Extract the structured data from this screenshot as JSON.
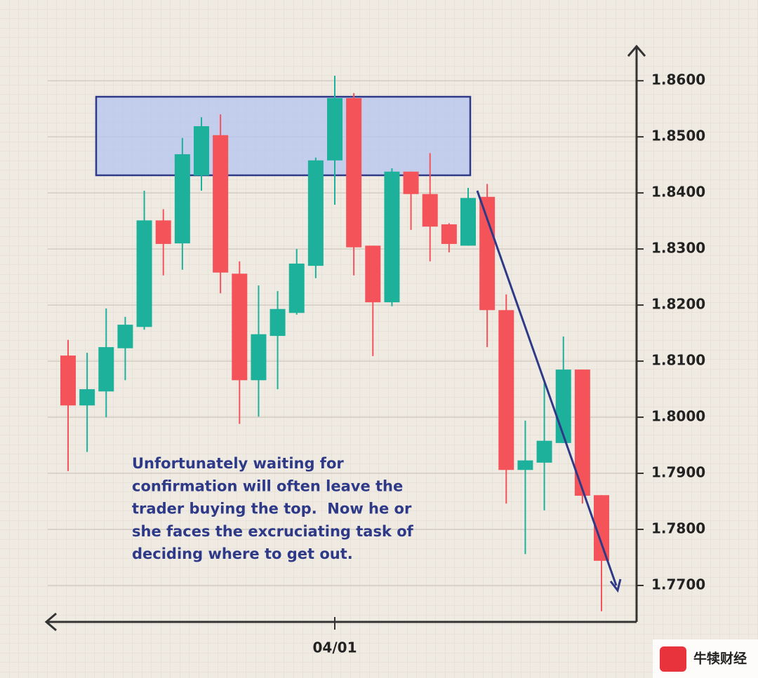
{
  "chart_data": {
    "type": "candlestick",
    "categories": [
      null,
      null,
      null,
      null,
      null,
      null,
      null,
      null,
      null,
      null,
      null,
      null,
      null,
      null,
      "04/01",
      null,
      null,
      null,
      null,
      null,
      null,
      null,
      null,
      null,
      null,
      null,
      null,
      null,
      null
    ],
    "open": [
      1.811,
      1.8021,
      1.8046,
      1.8123,
      1.8161,
      1.8351,
      1.831,
      1.8431,
      1.8503,
      1.8256,
      1.8066,
      1.8145,
      1.8186,
      1.827,
      1.8458,
      1.8569,
      1.8306,
      1.8205,
      1.8438,
      1.8398,
      1.8344,
      1.8306,
      1.8393,
      1.8191,
      1.7906,
      1.7919,
      1.7954,
      1.8085,
      1.7861
    ],
    "high": [
      1.8138,
      1.8115,
      1.8194,
      1.8179,
      1.8404,
      1.8371,
      1.8498,
      1.8535,
      1.854,
      1.8278,
      1.8235,
      1.8225,
      1.83,
      1.8463,
      1.8609,
      1.8578,
      1.8306,
      1.8444,
      1.8438,
      1.8471,
      1.8346,
      1.8409,
      1.8416,
      1.8219,
      1.7994,
      1.8063,
      1.8144,
      1.8085,
      1.7861
    ],
    "low": [
      1.7904,
      1.7938,
      1.8,
      1.8066,
      1.8156,
      1.8253,
      1.8263,
      1.8404,
      1.8221,
      1.7988,
      1.8001,
      1.805,
      1.8183,
      1.8248,
      1.8379,
      1.8253,
      1.8109,
      1.8198,
      1.8334,
      1.8278,
      1.8294,
      1.8306,
      1.8125,
      1.7846,
      1.7756,
      1.7834,
      1.7954,
      1.7846,
      1.7654
    ],
    "close": [
      1.8021,
      1.805,
      1.8125,
      1.8165,
      1.8351,
      1.8309,
      1.8469,
      1.8519,
      1.8258,
      1.8066,
      1.8148,
      1.8193,
      1.8274,
      1.8458,
      1.8569,
      1.8303,
      1.8205,
      1.8438,
      1.8398,
      1.834,
      1.8309,
      1.8391,
      1.8191,
      1.7906,
      1.7923,
      1.7958,
      1.8085,
      1.786,
      1.7744
    ],
    "up_color": "#1db09b",
    "down_color": "#f4535a",
    "ylim": [
      1.7635,
      1.8659
    ],
    "yticks": [
      {
        "value": 1.86,
        "label": "1.8600"
      },
      {
        "value": 1.85,
        "label": "1.8500"
      },
      {
        "value": 1.84,
        "label": "1.8400"
      },
      {
        "value": 1.83,
        "label": "1.8300"
      },
      {
        "value": 1.82,
        "label": "1.8200"
      },
      {
        "value": 1.81,
        "label": "1.8100"
      },
      {
        "value": 1.8,
        "label": "1.8000"
      },
      {
        "value": 1.79,
        "label": "1.7900"
      },
      {
        "value": 1.78,
        "label": "1.7800"
      },
      {
        "value": 1.77,
        "label": "1.7700"
      }
    ],
    "grid": true,
    "annotation": [
      "Unfortunately waiting for",
      "confirmation will often leave the",
      "trader buying the top.  Now he or",
      "she faces the excruciating task of",
      "deciding where to get out."
    ],
    "watermark": "牛犊财经"
  }
}
